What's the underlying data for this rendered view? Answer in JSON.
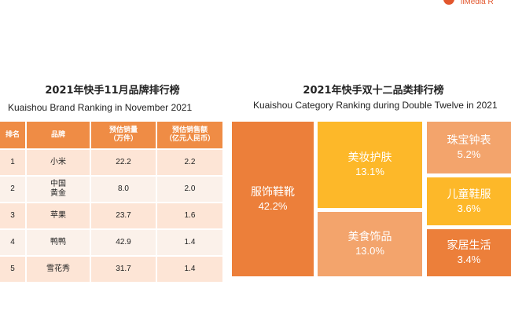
{
  "logo": {
    "text": "iiMedia R"
  },
  "left_panel": {
    "title_zh": "2021年快手11月品牌排行榜",
    "title_en": "Kuaishou Brand Ranking in November 2021",
    "headers": [
      "排名",
      "品牌",
      "预估销量\n（万件）",
      "预估销售额\n（亿元人民币）"
    ],
    "rows": [
      {
        "rank": "1",
        "brand": "小米",
        "volume": "22.2",
        "sales": "2.2"
      },
      {
        "rank": "2",
        "brand": "中国\n黄金",
        "volume": "8.0",
        "sales": "2.0"
      },
      {
        "rank": "3",
        "brand": "苹果",
        "volume": "23.7",
        "sales": "1.6"
      },
      {
        "rank": "4",
        "brand": "鸭鸭",
        "volume": "42.9",
        "sales": "1.4"
      },
      {
        "rank": "5",
        "brand": "雪花秀",
        "volume": "31.7",
        "sales": "1.4"
      }
    ]
  },
  "right_panel": {
    "title_zh": "2021年快手双十二品类排行榜",
    "title_en": "Kuaishou Category Ranking during Double Twelve in 2021"
  },
  "chart_data": [
    {
      "type": "table",
      "title": "2021年快手11月品牌排行榜",
      "subtitle": "Kuaishou Brand Ranking in November 2021",
      "columns": [
        "排名",
        "品牌",
        "预估销量（万件）",
        "预估销售额（亿元人民币）"
      ],
      "rows": [
        [
          "1",
          "小米",
          22.2,
          2.2
        ],
        [
          "2",
          "中国黄金",
          8.0,
          2.0
        ],
        [
          "3",
          "苹果",
          23.7,
          1.6
        ],
        [
          "4",
          "鸭鸭",
          42.9,
          1.4
        ],
        [
          "5",
          "雪花秀",
          31.7,
          1.4
        ]
      ]
    },
    {
      "type": "treemap",
      "title": "2021年快手双十二品类排行榜",
      "subtitle": "Kuaishou Category Ranking during Double Twelve in 2021",
      "items": [
        {
          "name": "服饰鞋靴",
          "value": 42.2,
          "label": "42.2%",
          "color": "#ec7f3a"
        },
        {
          "name": "美妆护肤",
          "value": 13.1,
          "label": "13.1%",
          "color": "#fdb829"
        },
        {
          "name": "美食饰品",
          "value": 13.0,
          "label": "13.0%",
          "color": "#f3a46c"
        },
        {
          "name": "珠宝钟表",
          "value": 5.2,
          "label": "5.2%",
          "color": "#f3a46c"
        },
        {
          "name": "儿童鞋服",
          "value": 3.6,
          "label": "3.6%",
          "color": "#fdb829"
        },
        {
          "name": "家居生活",
          "value": 3.4,
          "label": "3.4%",
          "color": "#ec7f3a"
        }
      ]
    }
  ]
}
